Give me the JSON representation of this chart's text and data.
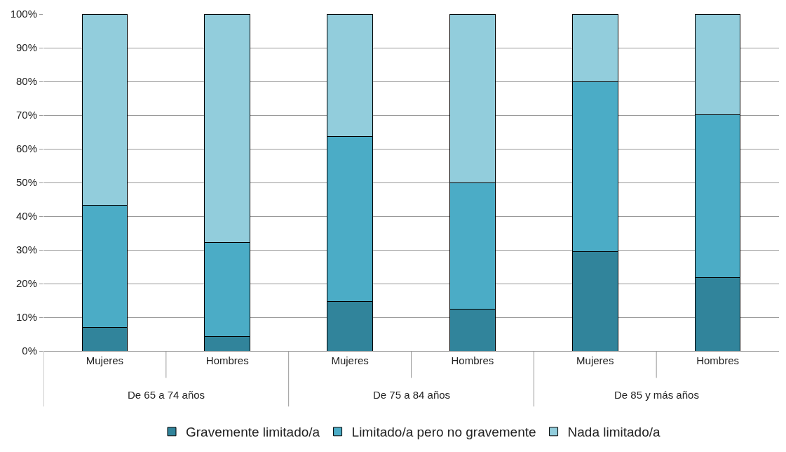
{
  "chart_data": {
    "type": "bar",
    "stacked": true,
    "categories": [
      "Mujeres",
      "Hombres",
      "Mujeres",
      "Hombres",
      "Mujeres",
      "Hombres"
    ],
    "series": [
      {
        "name": "Gravemente limitado/a",
        "color": "#31849b",
        "values": [
          7,
          4.3,
          14.7,
          12.5,
          29.5,
          21.8
        ]
      },
      {
        "name": "Limitado/a pero no gravemente",
        "color": "#4bacc6",
        "values": [
          36.3,
          27.9,
          48.9,
          37.5,
          50.5,
          48.4
        ]
      },
      {
        "name": "Nada limitado/a",
        "color": "#92cddc",
        "values": [
          56.7,
          67.8,
          36.4,
          50,
          20,
          29.8
        ]
      }
    ],
    "ylim": [
      0,
      100
    ],
    "yticks": [
      {
        "value": 0,
        "label": "0%"
      },
      {
        "value": 10,
        "label": "10%"
      },
      {
        "value": 20,
        "label": "20%"
      },
      {
        "value": 30,
        "label": "30%"
      },
      {
        "value": 40,
        "label": "40%"
      },
      {
        "value": 50,
        "label": "50%"
      },
      {
        "value": 60,
        "label": "60%"
      },
      {
        "value": 70,
        "label": "70%"
      },
      {
        "value": 80,
        "label": "80%"
      },
      {
        "value": 90,
        "label": "90%"
      },
      {
        "value": 100,
        "label": "100%"
      }
    ],
    "grid": "y",
    "legend": "bottom",
    "annotations": [
      "De 65 a 74 años",
      "De 75 a 84 años",
      "De 85 y más años"
    ]
  }
}
